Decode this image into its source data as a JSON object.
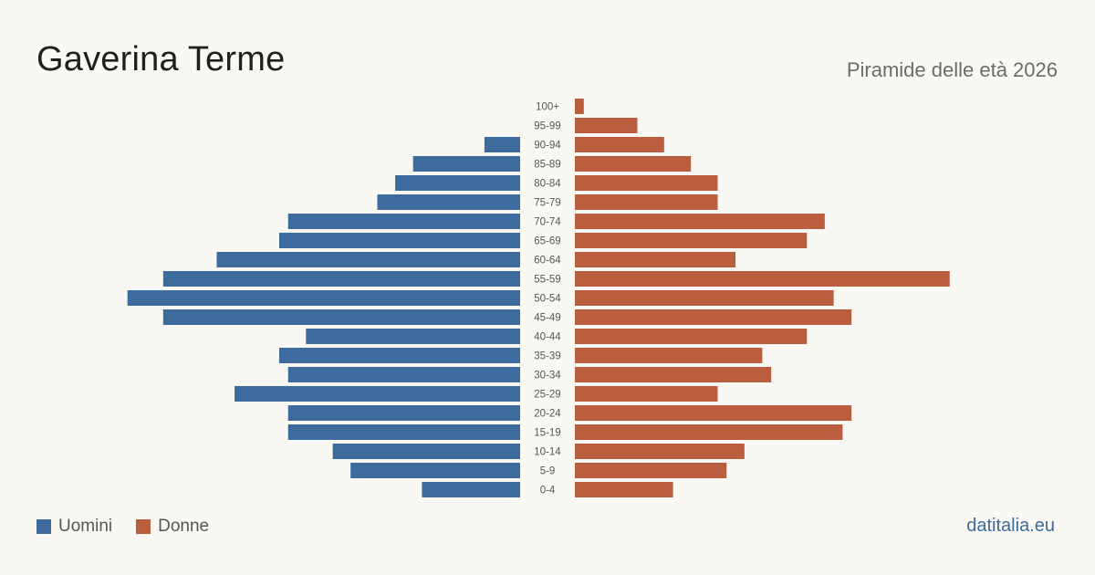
{
  "header": {
    "title": "Gaverina Terme",
    "subtitle": "Piramide delle età 2026"
  },
  "legend": {
    "men_label": "Uomini",
    "women_label": "Donne"
  },
  "brand": "datitalia.eu",
  "colors": {
    "men": "#3d6b9e",
    "women": "#bb5e3f",
    "brand": "#3d6b9e",
    "background": "#faf8f3"
  },
  "chart_data": {
    "type": "bar",
    "orientation": "horizontal-pyramid",
    "categories": [
      "100+",
      "95-99",
      "90-94",
      "85-89",
      "80-84",
      "75-79",
      "70-74",
      "65-69",
      "60-64",
      "55-59",
      "50-54",
      "45-49",
      "40-44",
      "35-39",
      "30-34",
      "25-29",
      "20-24",
      "15-19",
      "10-14",
      "5-9",
      "0-4"
    ],
    "series": [
      {
        "name": "Uomini",
        "values": [
          0,
          0,
          4,
          12,
          14,
          16,
          26,
          27,
          34,
          40,
          44,
          40,
          24,
          27,
          26,
          32,
          26,
          26,
          21,
          19,
          11
        ]
      },
      {
        "name": "Donne",
        "values": [
          1,
          7,
          10,
          13,
          16,
          16,
          28,
          26,
          18,
          42,
          29,
          31,
          26,
          21,
          22,
          16,
          31,
          30,
          19,
          17,
          11
        ]
      }
    ],
    "grid": false,
    "legend_position": "bottom-left"
  }
}
